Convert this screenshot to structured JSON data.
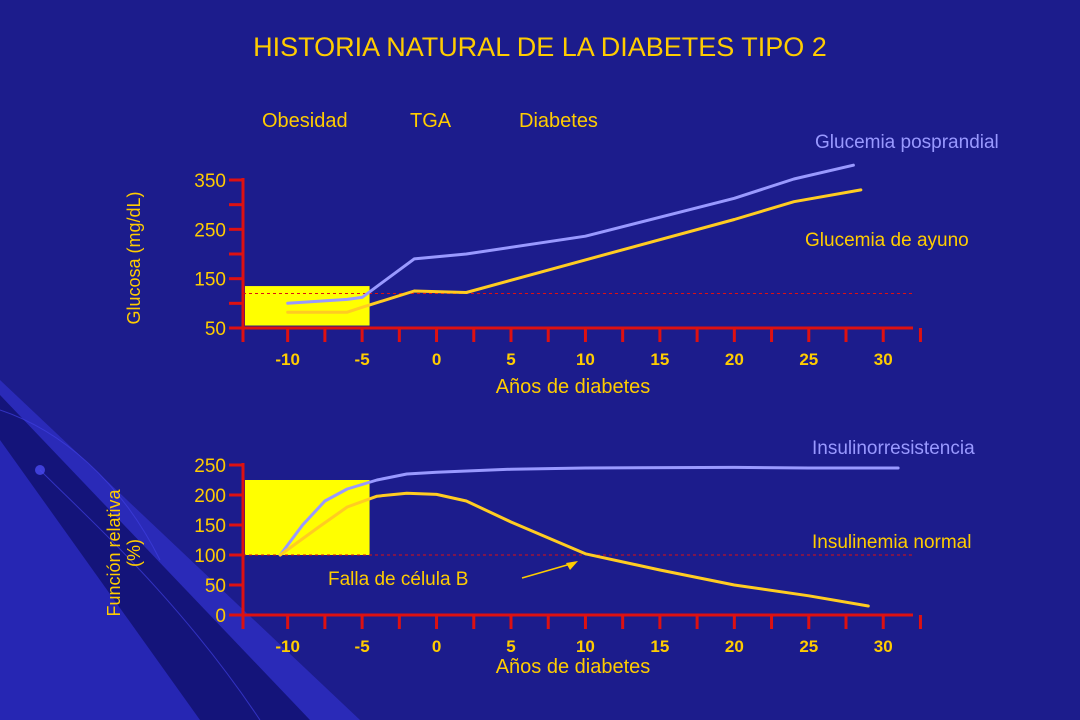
{
  "title": "HISTORIA NATURAL DE LA DIABETES TIPO 2",
  "stages": [
    "Obesidad",
    "TGA",
    "Diabetes"
  ],
  "colors": {
    "background": "#1c1c8c",
    "axis": "#dd1111",
    "text": "#ffcc00",
    "series_blue": "#9999ff",
    "series_yellow": "#ffcc22",
    "highlight": "#ffff00"
  },
  "chart_data": [
    {
      "type": "line",
      "ylabel": "Glucosa (mg/dL)",
      "xlabel": "Años de diabetes",
      "xlim": [
        -13,
        32
      ],
      "ylim": [
        50,
        360
      ],
      "x_ticks": [
        -10,
        -5,
        0,
        5,
        10,
        15,
        20,
        25,
        30
      ],
      "y_ticks": [
        50,
        150,
        250,
        350
      ],
      "reference_line": 120,
      "highlight_region": {
        "x": [
          -13,
          -4.5
        ],
        "y": [
          55,
          135
        ]
      },
      "series": [
        {
          "name": "Glucemia posprandial",
          "color": "series_blue",
          "x": [
            -10,
            -6,
            -5,
            -1.5,
            2,
            10,
            20,
            24,
            28
          ],
          "y": [
            100,
            108,
            112,
            190,
            200,
            236,
            313,
            352,
            380
          ]
        },
        {
          "name": "Glucemia de ayuno",
          "color": "series_yellow",
          "x": [
            -10,
            -6,
            -5,
            -1.5,
            2,
            10,
            20,
            24,
            28.5
          ],
          "y": [
            82,
            82,
            92,
            125,
            122,
            188,
            270,
            306,
            330
          ]
        }
      ]
    },
    {
      "type": "line",
      "ylabel": "Función relativa (%)",
      "xlabel": "Años de diabetes",
      "xlim": [
        -13,
        32
      ],
      "ylim": [
        0,
        250
      ],
      "x_ticks": [
        -10,
        -5,
        0,
        5,
        10,
        15,
        20,
        25,
        30
      ],
      "y_ticks": [
        0,
        50,
        100,
        150,
        200,
        250
      ],
      "reference_line": 100,
      "highlight_region": {
        "x": [
          -13,
          -4.5
        ],
        "y": [
          100,
          225
        ]
      },
      "annotation": {
        "text": "Falla de célula B",
        "x": 9.5,
        "y": 100
      },
      "series": [
        {
          "name": "Insulinorresistencia",
          "color": "series_blue",
          "x": [
            -10.5,
            -9,
            -7.5,
            -6,
            -4,
            -2,
            0,
            5,
            10,
            20,
            25,
            31
          ],
          "y": [
            100,
            150,
            190,
            210,
            225,
            235,
            238,
            243,
            245,
            246,
            245,
            245
          ]
        },
        {
          "name": "Insulinemia normal",
          "color": "series_yellow",
          "x": [
            -10.5,
            -8,
            -6,
            -4,
            -2,
            0,
            2,
            5,
            10,
            15,
            20,
            25,
            29
          ],
          "y": [
            100,
            145,
            180,
            198,
            203,
            201,
            190,
            155,
            102,
            75,
            50,
            32,
            15
          ]
        }
      ]
    }
  ]
}
